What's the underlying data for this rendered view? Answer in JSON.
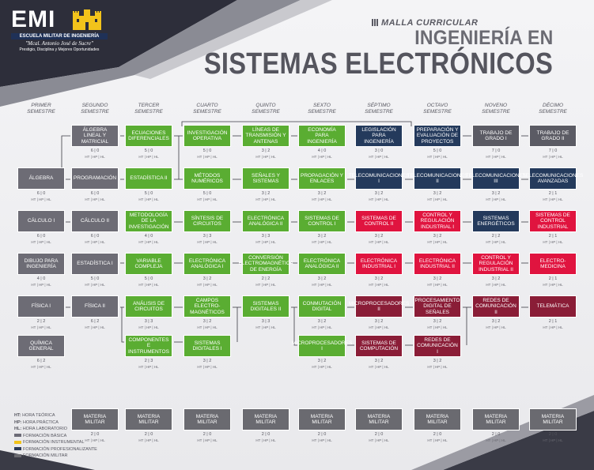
{
  "header": {
    "logo_text": "EMI",
    "school_name": "ESCUELA MILITAR DE INGENIERÍA",
    "founder": "\"Mcal. Antonio José de Sucre\"",
    "motto": "Prestigio, Disciplina y Mejores Oportunidades",
    "tagline": "MALLA CURRICULAR",
    "title_line1": "INGENIERÍA EN",
    "title_line2": "SISTEMAS ELECTRÓNICOS"
  },
  "colors": {
    "basica": "#6c6b77",
    "instrumental": "#f2c31b",
    "profesionalizante": "#2b3a57",
    "militar": "#6a6a70",
    "green": "#5aad32",
    "dark": "#5b5b64",
    "navy": "#243a5c",
    "red": "#e0143f",
    "maroon": "#8a1d37",
    "gray": "#6d6c75"
  },
  "semesters": [
    {
      "l1": "PRIMER",
      "l2": "SEMESTRE"
    },
    {
      "l1": "SEGUNDO",
      "l2": "SEMESTRE"
    },
    {
      "l1": "TERCER",
      "l2": "SEMESTRE"
    },
    {
      "l1": "CUARTO",
      "l2": "SEMESTRE"
    },
    {
      "l1": "QUINTO",
      "l2": "SEMESTRE"
    },
    {
      "l1": "SEXTO",
      "l2": "SEMESTRE"
    },
    {
      "l1": "SÉPTIMO",
      "l2": "SEMESTRE"
    },
    {
      "l1": "OCTAVO",
      "l2": "SEMESTRE"
    },
    {
      "l1": "NOVENO",
      "l2": "SEMESTRE"
    },
    {
      "l1": "DÉCIMO",
      "l2": "SEMESTRE"
    }
  ],
  "hours_label": "HT | HP | HL",
  "courses": [
    {
      "name": "ÁLGEBRA",
      "hours": "6 | 0",
      "col": 0,
      "row": 1,
      "color": "gray"
    },
    {
      "name": "CÁLCULO I",
      "hours": "6 | 0",
      "col": 0,
      "row": 2,
      "color": "gray"
    },
    {
      "name": "DIBUJO PARA INGENIERÍA",
      "hours": "4 | 0",
      "col": 0,
      "row": 3,
      "color": "gray"
    },
    {
      "name": "FÍSICA I",
      "hours": "2 | 2",
      "col": 0,
      "row": 4,
      "color": "gray"
    },
    {
      "name": "QUÍMICA GENERAL",
      "hours": "6 | 2",
      "col": 0,
      "row": 5,
      "color": "gray"
    },
    {
      "name": "ÁLGEBRA LINEAL Y MATRICIAL",
      "hours": "6 | 0",
      "col": 1,
      "row": 0,
      "color": "gray"
    },
    {
      "name": "PROGRAMACIÓN",
      "hours": "6 | 0",
      "col": 1,
      "row": 1,
      "color": "gray"
    },
    {
      "name": "CÁLCULO II",
      "hours": "6 | 0",
      "col": 1,
      "row": 2,
      "color": "gray"
    },
    {
      "name": "ESTADÍSTICA I",
      "hours": "5 | 0",
      "col": 1,
      "row": 3,
      "color": "gray"
    },
    {
      "name": "FÍSICA II",
      "hours": "6 | 2",
      "col": 1,
      "row": 4,
      "color": "gray"
    },
    {
      "name": "ECUACIONES DIFERENCIALES",
      "hours": "5 | 0",
      "col": 2,
      "row": 0,
      "color": "green"
    },
    {
      "name": "ESTADÍSTICA II",
      "hours": "5 | 0",
      "col": 2,
      "row": 1,
      "color": "green"
    },
    {
      "name": "METODOLOGÍA DE LA INVESTIGACIÓN",
      "hours": "4 | 0",
      "col": 2,
      "row": 2,
      "color": "green"
    },
    {
      "name": "VARIABLE COMPLEJA",
      "hours": "5 | 0",
      "col": 2,
      "row": 3,
      "color": "green"
    },
    {
      "name": "ANÁLISIS DE CIRCUITOS",
      "hours": "3 | 3",
      "col": 2,
      "row": 4,
      "color": "green"
    },
    {
      "name": "COMPONENTES E INSTRUMENTOS",
      "hours": "2 | 3",
      "col": 2,
      "row": 5,
      "color": "green"
    },
    {
      "name": "INVESTIGACIÓN OPERATIVA",
      "hours": "5 | 0",
      "col": 3,
      "row": 0,
      "color": "green"
    },
    {
      "name": "MÉTODOS NUMÉRICOS",
      "hours": "5 | 0",
      "col": 3,
      "row": 1,
      "color": "green"
    },
    {
      "name": "SÍNTESIS DE CIRCUITOS",
      "hours": "3 | 3",
      "col": 3,
      "row": 2,
      "color": "green"
    },
    {
      "name": "ELECTRÓNICA ANALÓGICA I",
      "hours": "3 | 2",
      "col": 3,
      "row": 3,
      "color": "green"
    },
    {
      "name": "CAMPOS ELECTRO- MAGNÉTICOS",
      "hours": "3 | 2",
      "col": 3,
      "row": 4,
      "color": "green"
    },
    {
      "name": "SISTEMAS DIGITALES I",
      "hours": "3 | 2",
      "col": 3,
      "row": 5,
      "color": "green"
    },
    {
      "name": "LÍNEAS DE TRANSMISIÓN Y ANTENAS",
      "hours": "3 | 2",
      "col": 4,
      "row": 0,
      "color": "green"
    },
    {
      "name": "SEÑALES Y SISTEMAS",
      "hours": "3 | 2",
      "col": 4,
      "row": 1,
      "color": "green"
    },
    {
      "name": "ELECTRÓNICA ANALÓGICA II",
      "hours": "3 | 3",
      "col": 4,
      "row": 2,
      "color": "green"
    },
    {
      "name": "CONVERSIÓN ELECTROMAGNÉTICA DE ENERGÍA",
      "hours": "2 | 2",
      "col": 4,
      "row": 3,
      "color": "green"
    },
    {
      "name": "SISTEMAS DIGITALES II",
      "hours": "3 | 3",
      "col": 4,
      "row": 4,
      "color": "green"
    },
    {
      "name": "ECONOMÍA PARA INGENIERÍA",
      "hours": "4 | 0",
      "col": 5,
      "row": 0,
      "color": "green"
    },
    {
      "name": "PROPAGACIÓN Y ENLACES",
      "hours": "3 | 2",
      "col": 5,
      "row": 1,
      "color": "green"
    },
    {
      "name": "SISTEMAS DE CONTROL I",
      "hours": "3 | 2",
      "col": 5,
      "row": 2,
      "color": "green"
    },
    {
      "name": "ELECTRÓNICA ANALÓGICA II",
      "hours": "3 | 2",
      "col": 5,
      "row": 3,
      "color": "green"
    },
    {
      "name": "CONMUTACIÓN DIGITAL",
      "hours": "3 | 2",
      "col": 5,
      "row": 4,
      "color": "green"
    },
    {
      "name": "MICROPROCESADORES I",
      "hours": "3 | 2",
      "col": 5,
      "row": 5,
      "color": "green"
    },
    {
      "name": "LEGISLACIÓN PARA INGENIERÍA",
      "hours": "3 | 0",
      "col": 6,
      "row": 0,
      "color": "navy"
    },
    {
      "name": "TELECOMUNICACIONES I",
      "hours": "3 | 2",
      "col": 6,
      "row": 1,
      "color": "navy"
    },
    {
      "name": "SISTEMAS DE CONTROL II",
      "hours": "3 | 2",
      "col": 6,
      "row": 2,
      "color": "red"
    },
    {
      "name": "ELECTRÓNICA INDUSTRIAL I",
      "hours": "3 | 2",
      "col": 6,
      "row": 3,
      "color": "red"
    },
    {
      "name": "MICROPROCESADORES II",
      "hours": "3 | 2",
      "col": 6,
      "row": 4,
      "color": "maroon"
    },
    {
      "name": "SISTEMAS DE COMPUTACIÓN",
      "hours": "3 | 2",
      "col": 6,
      "row": 5,
      "color": "maroon"
    },
    {
      "name": "PREPARACIÓN Y EVALUACIÓN DE PROYECTOS",
      "hours": "5 | 0",
      "col": 7,
      "row": 0,
      "color": "navy"
    },
    {
      "name": "TELECOMUNICACIONES II",
      "hours": "3 | 2",
      "col": 7,
      "row": 1,
      "color": "navy"
    },
    {
      "name": "CONTROL Y REGULACIÓN INDUSTRIAL I",
      "hours": "3 | 2",
      "col": 7,
      "row": 2,
      "color": "red"
    },
    {
      "name": "ELECTRÓNICA INDUSTRIAL II",
      "hours": "3 | 2",
      "col": 7,
      "row": 3,
      "color": "red"
    },
    {
      "name": "PROCESAMIENTO DIGITAL DE SEÑALES",
      "hours": "3 | 2",
      "col": 7,
      "row": 4,
      "color": "maroon"
    },
    {
      "name": "REDES DE COMUNICACIÓN I",
      "hours": "3 | 2",
      "col": 7,
      "row": 5,
      "color": "maroon"
    },
    {
      "name": "TRABAJO DE GRADO I",
      "hours": "7 | 0",
      "col": 8,
      "row": 0,
      "color": "dark"
    },
    {
      "name": "TELECOMUNICACIONES III",
      "hours": "3 | 2",
      "col": 8,
      "row": 1,
      "color": "navy"
    },
    {
      "name": "SISTEMAS ENERGÉTICOS",
      "hours": "2 | 2",
      "col": 8,
      "row": 2,
      "color": "navy"
    },
    {
      "name": "CONTROL Y REGULACIÓN INDUSTRIAL II",
      "hours": "3 | 2",
      "col": 8,
      "row": 3,
      "color": "red"
    },
    {
      "name": "REDES DE COMUNICACIÓN II",
      "hours": "3 | 2",
      "col": 8,
      "row": 4,
      "color": "maroon"
    },
    {
      "name": "TRABAJO DE GRADO II",
      "hours": "7 | 0",
      "col": 9,
      "row": 0,
      "color": "dark"
    },
    {
      "name": "TELECOMUNICACIONES AVANZADAS",
      "hours": "2 | 1",
      "col": 9,
      "row": 1,
      "color": "navy"
    },
    {
      "name": "SISTEMAS DE CONTROL INDUSTRIAL",
      "hours": "2 | 1",
      "col": 9,
      "row": 2,
      "color": "red"
    },
    {
      "name": "ELECTRO- MEDICINA",
      "hours": "2 | 1",
      "col": 9,
      "row": 3,
      "color": "red"
    },
    {
      "name": "TELEMÁTICA",
      "hours": "2 | 1",
      "col": 9,
      "row": 4,
      "color": "maroon"
    }
  ],
  "military": {
    "name": "MATERIA MILITAR",
    "hours": "2 | 0",
    "color": "militar"
  },
  "legend": [
    {
      "key": "HT:",
      "text": "HORA TEÓRICA"
    },
    {
      "key": "HP:",
      "text": "HORA PRÁCTICA"
    },
    {
      "key": "HL:",
      "text": "HORA LABORATORIO"
    },
    {
      "swatch": "basica",
      "text": "FORMACIÓN BÁSICA"
    },
    {
      "swatch": "instrumental",
      "text": "FORMACIÓN INSTRUMENTAL"
    },
    {
      "swatch": "profesionalizante",
      "text": "FORMACIÓN PROFESIONALIZANTE"
    },
    {
      "swatch": "militar",
      "text": "FORMACIÓN MILITAR"
    }
  ]
}
